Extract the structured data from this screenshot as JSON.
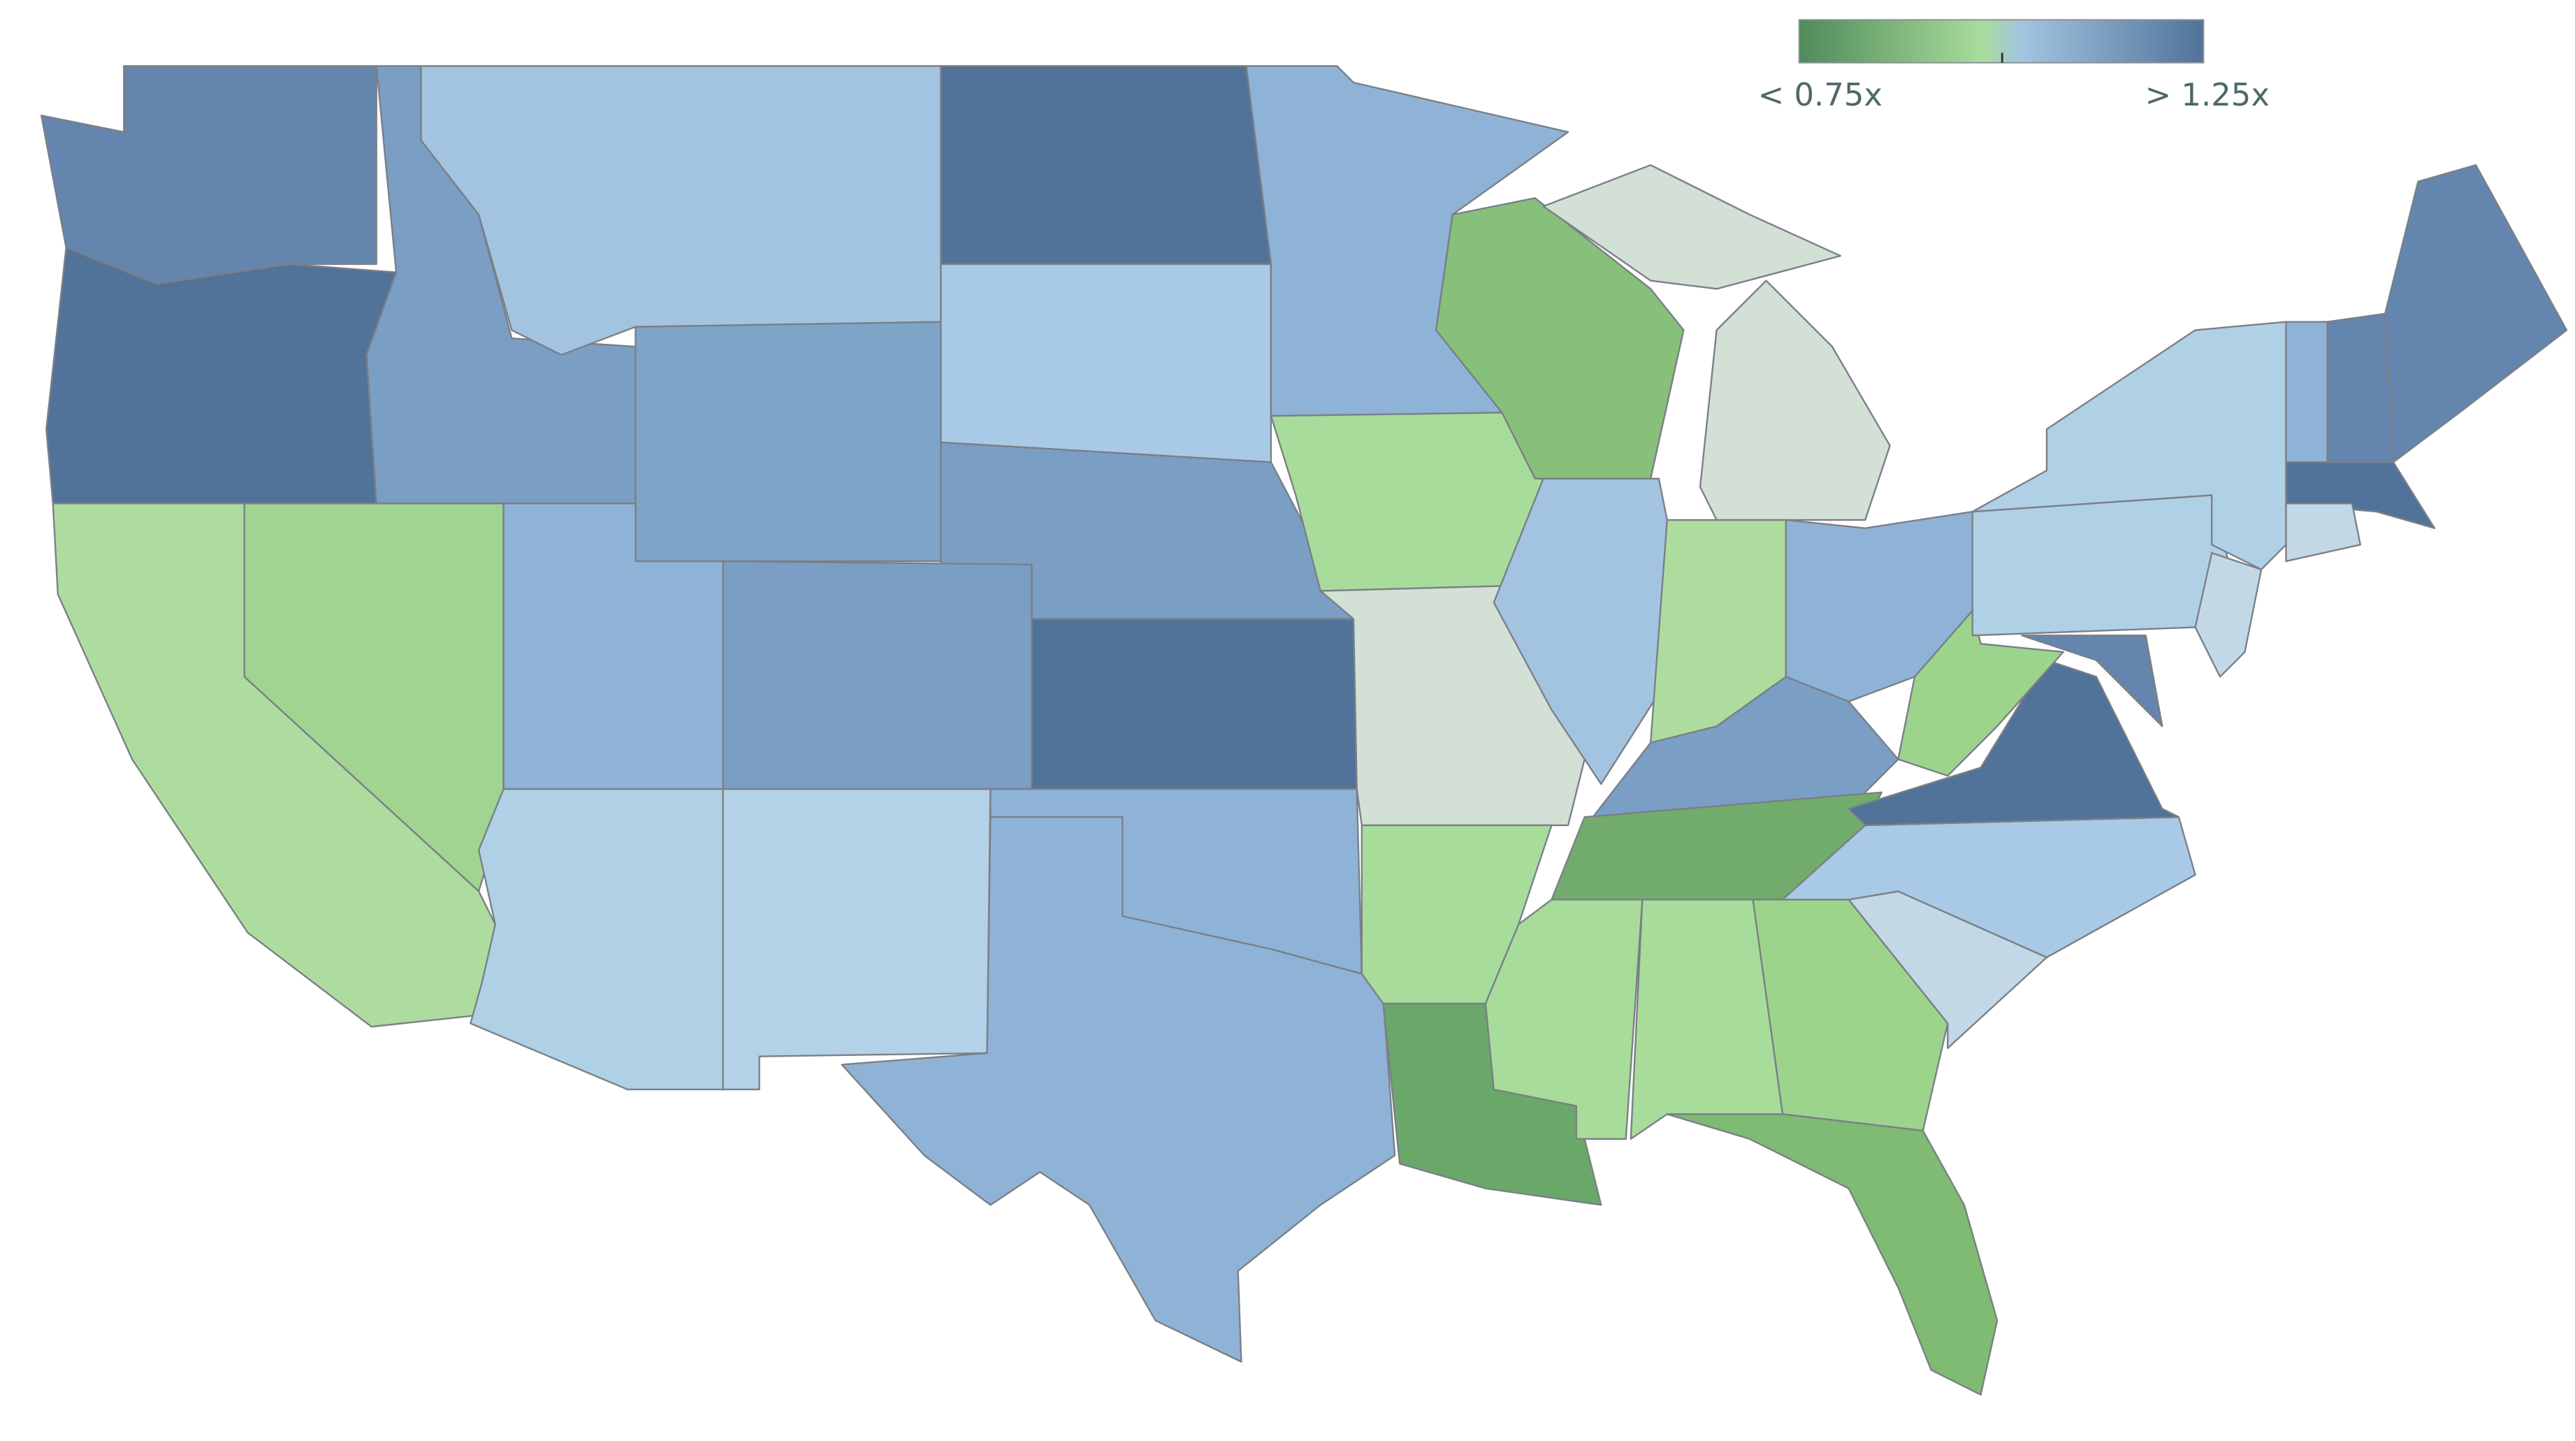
{
  "legend": {
    "min_label": "< 0.75x",
    "max_label": "> 1.25x"
  }
}
